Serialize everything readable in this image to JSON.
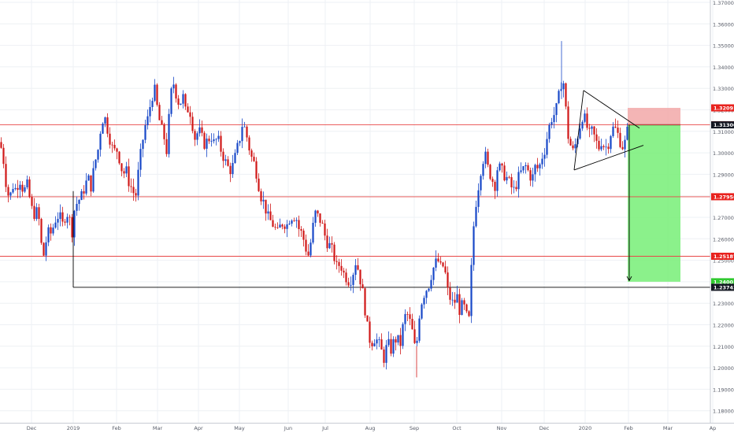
{
  "chart_data": {
    "type": "candlestick",
    "title": "",
    "xlabel": "",
    "ylabel": "",
    "ylim": [
      1.1675,
      1.3715
    ],
    "grid": true,
    "colors": {
      "up": "#1848c8",
      "down": "#d01818",
      "bg": "#ffffff",
      "grid": "#eef0f4"
    },
    "x_ticks": [
      "Dec",
      "2019",
      "Feb",
      "Mar",
      "Apr",
      "May",
      "Jun",
      "Jul",
      "Aug",
      "Sep",
      "Oct",
      "Nov",
      "Dec",
      "2020",
      "Feb",
      "Mar",
      "Ap"
    ],
    "x_ticks_pos": [
      40,
      93,
      148,
      200,
      252,
      304,
      366,
      413,
      470,
      526,
      580,
      637,
      691,
      743,
      798,
      848,
      905
    ],
    "y_ticks": [
      "1.37000",
      "1.36000",
      "1.35000",
      "1.34000",
      "1.33000",
      "1.32000",
      "1.31000",
      "1.30000",
      "1.29000",
      "1.28000",
      "1.27000",
      "1.26000",
      "1.25000",
      "1.24000",
      "1.23000",
      "1.22000",
      "1.21000",
      "1.20000",
      "1.19000",
      "1.18000"
    ],
    "price_labels": [
      {
        "value": "1.32091",
        "kind": "red"
      },
      {
        "value": "1.31305",
        "kind": "red"
      },
      {
        "value": "1.31300",
        "kind": "black"
      },
      {
        "value": "1.27956",
        "kind": "red"
      },
      {
        "value": "1.25187",
        "kind": "red"
      },
      {
        "value": "1.24001",
        "kind": "green"
      },
      {
        "value": "1.23742",
        "kind": "black"
      }
    ],
    "horizontal_lines": [
      {
        "y": 1.31305,
        "color": "#e84848"
      },
      {
        "y": 1.27956,
        "color": "#e84848"
      },
      {
        "y": 1.25187,
        "color": "#e84848"
      },
      {
        "y": 1.23742,
        "color": "#000000"
      }
    ],
    "position": {
      "entry": 1.31305,
      "stop": 1.32091,
      "target": 1.24001
    },
    "close_points": [
      [
        0,
        1.305
      ],
      [
        4,
        1.298
      ],
      [
        8,
        1.285
      ],
      [
        12,
        1.278
      ],
      [
        16,
        1.285
      ],
      [
        20,
        1.283
      ],
      [
        25,
        1.288
      ],
      [
        30,
        1.282
      ],
      [
        35,
        1.285
      ],
      [
        38,
        1.278
      ],
      [
        42,
        1.271
      ],
      [
        46,
        1.273
      ],
      [
        50,
        1.268
      ],
      [
        53,
        1.255
      ],
      [
        56,
        1.252
      ],
      [
        60,
        1.263
      ],
      [
        64,
        1.262
      ],
      [
        68,
        1.266
      ],
      [
        72,
        1.271
      ],
      [
        76,
        1.27
      ],
      [
        80,
        1.266
      ],
      [
        84,
        1.273
      ],
      [
        88,
        1.27
      ],
      [
        91,
        1.262
      ],
      [
        95,
        1.275
      ],
      [
        100,
        1.278
      ],
      [
        104,
        1.28
      ],
      [
        108,
        1.285
      ],
      [
        112,
        1.288
      ],
      [
        116,
        1.284
      ],
      [
        120,
        1.295
      ],
      [
        124,
        1.3
      ],
      [
        128,
        1.312
      ],
      [
        132,
        1.318
      ],
      [
        136,
        1.312
      ],
      [
        140,
        1.306
      ],
      [
        144,
        1.3
      ],
      [
        148,
        1.302
      ],
      [
        152,
        1.297
      ],
      [
        156,
        1.29
      ],
      [
        160,
        1.292
      ],
      [
        164,
        1.286
      ],
      [
        168,
        1.283
      ],
      [
        172,
        1.279
      ],
      [
        176,
        1.292
      ],
      [
        180,
        1.303
      ],
      [
        184,
        1.312
      ],
      [
        188,
        1.316
      ],
      [
        192,
        1.325
      ],
      [
        196,
        1.33
      ],
      [
        200,
        1.32
      ],
      [
        204,
        1.312
      ],
      [
        208,
        1.308
      ],
      [
        212,
        1.3
      ],
      [
        216,
        1.325
      ],
      [
        220,
        1.333
      ],
      [
        224,
        1.327
      ],
      [
        228,
        1.322
      ],
      [
        232,
        1.327
      ],
      [
        236,
        1.318
      ],
      [
        240,
        1.322
      ],
      [
        244,
        1.314
      ],
      [
        248,
        1.306
      ],
      [
        252,
        1.311
      ],
      [
        256,
        1.307
      ],
      [
        260,
        1.304
      ],
      [
        264,
        1.306
      ],
      [
        268,
        1.308
      ],
      [
        272,
        1.304
      ],
      [
        276,
        1.307
      ],
      [
        280,
        1.302
      ],
      [
        284,
        1.298
      ],
      [
        288,
        1.294
      ],
      [
        292,
        1.292
      ],
      [
        296,
        1.294
      ],
      [
        300,
        1.3
      ],
      [
        304,
        1.306
      ],
      [
        308,
        1.314
      ],
      [
        312,
        1.31
      ],
      [
        316,
        1.303
      ],
      [
        320,
        1.297
      ],
      [
        324,
        1.294
      ],
      [
        328,
        1.286
      ],
      [
        332,
        1.279
      ],
      [
        336,
        1.276
      ],
      [
        340,
        1.27
      ],
      [
        344,
        1.268
      ],
      [
        348,
        1.266
      ],
      [
        352,
        1.262
      ],
      [
        356,
        1.266
      ],
      [
        360,
        1.268
      ],
      [
        364,
        1.266
      ],
      [
        368,
        1.27
      ],
      [
        372,
        1.271
      ],
      [
        376,
        1.27
      ],
      [
        380,
        1.264
      ],
      [
        384,
        1.262
      ],
      [
        388,
        1.256
      ],
      [
        392,
        1.252
      ],
      [
        396,
        1.262
      ],
      [
        400,
        1.272
      ],
      [
        404,
        1.27
      ],
      [
        408,
        1.268
      ],
      [
        412,
        1.262
      ],
      [
        416,
        1.258
      ],
      [
        420,
        1.256
      ],
      [
        424,
        1.252
      ],
      [
        428,
        1.246
      ],
      [
        432,
        1.249
      ],
      [
        436,
        1.244
      ],
      [
        440,
        1.242
      ],
      [
        444,
        1.24
      ],
      [
        448,
        1.244
      ],
      [
        452,
        1.25
      ],
      [
        456,
        1.244
      ],
      [
        460,
        1.236
      ],
      [
        464,
        1.226
      ],
      [
        468,
        1.214
      ],
      [
        472,
        1.212
      ],
      [
        476,
        1.214
      ],
      [
        480,
        1.212
      ],
      [
        484,
        1.208
      ],
      [
        488,
        1.204
      ],
      [
        492,
        1.212
      ],
      [
        496,
        1.208
      ],
      [
        500,
        1.212
      ],
      [
        504,
        1.214
      ],
      [
        508,
        1.21
      ],
      [
        512,
        1.22
      ],
      [
        516,
        1.226
      ],
      [
        520,
        1.222
      ],
      [
        524,
        1.216
      ],
      [
        528,
        1.206
      ],
      [
        532,
        1.224
      ],
      [
        536,
        1.232
      ],
      [
        540,
        1.236
      ],
      [
        544,
        1.238
      ],
      [
        548,
        1.244
      ],
      [
        552,
        1.248
      ],
      [
        556,
        1.25
      ],
      [
        560,
        1.246
      ],
      [
        564,
        1.248
      ],
      [
        568,
        1.236
      ],
      [
        572,
        1.232
      ],
      [
        576,
        1.229
      ],
      [
        580,
        1.234
      ],
      [
        584,
        1.226
      ],
      [
        588,
        1.23
      ],
      [
        592,
        1.224
      ],
      [
        596,
        1.222
      ],
      [
        600,
        1.26
      ],
      [
        604,
        1.276
      ],
      [
        608,
        1.286
      ],
      [
        612,
        1.296
      ],
      [
        616,
        1.299
      ],
      [
        620,
        1.292
      ],
      [
        624,
        1.289
      ],
      [
        628,
        1.284
      ],
      [
        632,
        1.294
      ],
      [
        636,
        1.292
      ],
      [
        640,
        1.29
      ],
      [
        644,
        1.288
      ],
      [
        648,
        1.285
      ],
      [
        652,
        1.282
      ],
      [
        656,
        1.286
      ],
      [
        660,
        1.29
      ],
      [
        664,
        1.292
      ],
      [
        668,
        1.294
      ],
      [
        672,
        1.29
      ],
      [
        676,
        1.288
      ],
      [
        680,
        1.294
      ],
      [
        684,
        1.292
      ],
      [
        688,
        1.298
      ],
      [
        692,
        1.302
      ],
      [
        696,
        1.31
      ],
      [
        700,
        1.316
      ],
      [
        704,
        1.318
      ],
      [
        708,
        1.322
      ],
      [
        711,
        1.33
      ],
      [
        714,
        1.335
      ],
      [
        717,
        1.33
      ],
      [
        720,
        1.31
      ],
      [
        724,
        1.304
      ],
      [
        728,
        1.3
      ],
      [
        732,
        1.306
      ],
      [
        736,
        1.312
      ],
      [
        740,
        1.318
      ],
      [
        744,
        1.314
      ],
      [
        748,
        1.308
      ],
      [
        752,
        1.31
      ],
      [
        756,
        1.306
      ],
      [
        760,
        1.302
      ],
      [
        764,
        1.306
      ],
      [
        768,
        1.302
      ],
      [
        772,
        1.304
      ],
      [
        776,
        1.31
      ],
      [
        780,
        1.312
      ],
      [
        784,
        1.309
      ],
      [
        788,
        1.305
      ],
      [
        792,
        1.302
      ],
      [
        796,
        1.309
      ],
      [
        798,
        1.3125
      ]
    ]
  }
}
